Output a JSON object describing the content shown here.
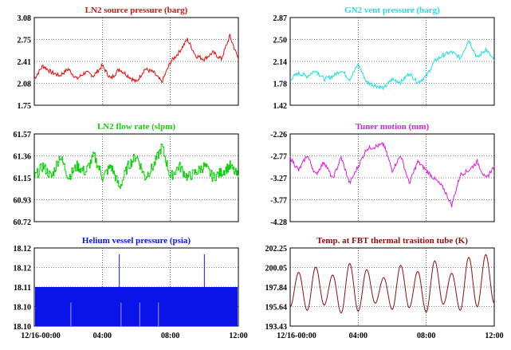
{
  "chart_data": [
    {
      "type": "line",
      "title": "LN2 source pressure (barg)",
      "color": "#e01010",
      "y_ticks": [
        "3.08",
        "2.75",
        "2.41",
        "2.08",
        "1.75"
      ],
      "ylim": [
        1.75,
        3.08
      ],
      "x_ticks": [],
      "x_range_hours": [
        0,
        12
      ],
      "grid": "dotted at ticks",
      "series": [
        {
          "x": [
            0,
            0.5,
            1,
            1.5,
            2,
            2.5,
            3,
            3.5,
            4,
            4.5,
            5,
            5.5,
            6,
            6.5,
            7,
            7.5,
            8,
            8.5,
            9,
            9.5,
            10,
            10.5,
            11,
            11.5,
            12
          ],
          "y": [
            2.15,
            2.35,
            2.25,
            2.2,
            2.3,
            2.15,
            2.25,
            2.2,
            2.35,
            2.15,
            2.3,
            2.2,
            2.1,
            2.3,
            2.25,
            2.1,
            2.4,
            2.55,
            2.75,
            2.5,
            2.45,
            2.55,
            2.45,
            2.8,
            2.45
          ]
        }
      ]
    },
    {
      "type": "line",
      "title": "GN2 vent pressure (barg)",
      "color": "#20e0e0",
      "y_ticks": [
        "2.87",
        "2.50",
        "2.14",
        "1.78",
        "1.42"
      ],
      "ylim": [
        1.42,
        2.87
      ],
      "x_ticks": [],
      "x_range_hours": [
        0,
        12
      ],
      "grid": "dotted at ticks",
      "series": [
        {
          "x": [
            0,
            0.5,
            1,
            1.5,
            2,
            2.5,
            3,
            3.5,
            4,
            4.5,
            5,
            5.5,
            6,
            6.5,
            7,
            7.5,
            8,
            8.5,
            9,
            9.5,
            10,
            10.5,
            11,
            11.5,
            12
          ],
          "y": [
            1.85,
            1.95,
            1.9,
            2.0,
            1.85,
            1.9,
            2.0,
            1.85,
            2.1,
            1.8,
            1.75,
            1.7,
            1.85,
            1.8,
            1.95,
            1.8,
            1.9,
            2.15,
            2.25,
            2.3,
            2.2,
            2.5,
            2.2,
            2.35,
            2.15
          ]
        }
      ]
    },
    {
      "type": "line",
      "title": "LN2 flow rate (slpm)",
      "color": "#10d010",
      "y_ticks": [
        "61.57",
        "61.36",
        "61.15",
        "60.93",
        "60.72"
      ],
      "ylim": [
        60.72,
        61.57
      ],
      "x_ticks": [],
      "x_range_hours": [
        0,
        12
      ],
      "grid": "dotted at ticks",
      "series": [
        {
          "x": [
            0,
            0.5,
            1,
            1.5,
            2,
            2.5,
            3,
            3.5,
            4,
            4.5,
            5,
            5.5,
            6,
            6.5,
            7,
            7.5,
            8,
            8.5,
            9,
            9.5,
            10,
            10.5,
            11,
            11.5,
            12
          ],
          "y": [
            61.15,
            61.26,
            61.15,
            61.36,
            61.15,
            61.26,
            61.2,
            61.36,
            61.15,
            61.26,
            61.05,
            61.26,
            61.36,
            61.15,
            61.26,
            61.45,
            61.15,
            61.26,
            61.15,
            61.2,
            61.26,
            61.15,
            61.2,
            61.26,
            61.15
          ]
        }
      ]
    },
    {
      "type": "line",
      "title": "Tuner motion (mm)",
      "color": "#e020e0",
      "y_ticks": [
        "-2.26",
        "-2.77",
        "-3.27",
        "-3.77",
        "-4.28"
      ],
      "ylim": [
        -4.28,
        -2.26
      ],
      "x_ticks": [],
      "x_range_hours": [
        0,
        12
      ],
      "grid": "dotted at ticks",
      "series": [
        {
          "x": [
            0,
            0.5,
            1,
            1.5,
            2,
            2.5,
            3,
            3.5,
            4,
            4.5,
            5,
            5.5,
            6,
            6.5,
            7,
            7.5,
            8,
            8.5,
            9,
            9.5,
            10,
            10.5,
            11,
            11.5,
            12
          ],
          "y": [
            -2.8,
            -3.1,
            -2.75,
            -3.2,
            -2.9,
            -3.3,
            -2.8,
            -3.4,
            -3.0,
            -2.6,
            -2.55,
            -2.5,
            -3.1,
            -2.75,
            -3.4,
            -2.9,
            -3.1,
            -3.3,
            -3.5,
            -3.9,
            -3.2,
            -3.1,
            -2.9,
            -3.3,
            -3.0
          ]
        }
      ]
    },
    {
      "type": "area",
      "title": "Helium vessel pressure (psia)",
      "color": "#0a14e8",
      "y_ticks": [
        "18.12",
        "18.12",
        "18.11",
        "18.10",
        "18.10"
      ],
      "ylim": [
        18.1,
        18.12
      ],
      "x_ticks": [
        "12/16-00:00",
        "04:00",
        "08:00",
        "12:00"
      ],
      "x_range_hours": [
        0,
        12
      ],
      "grid": "dotted at ticks",
      "fill_band": [
        18.1,
        18.11
      ],
      "spikes": [
        {
          "x": 5.0,
          "y": 18.12
        },
        {
          "x": 10.0,
          "y": 18.12
        }
      ]
    },
    {
      "type": "line",
      "title": "Temp. at FBT thermal trasition tube (K)",
      "color": "#8b1010",
      "y_ticks": [
        "202.25",
        "200.05",
        "197.84",
        "195.64",
        "193.43"
      ],
      "ylim": [
        193.43,
        202.25
      ],
      "x_ticks": [
        "12/16-00:00",
        "04:00",
        "08:00",
        "12:00"
      ],
      "x_range_hours": [
        0,
        12
      ],
      "grid": "dotted at ticks",
      "series": [
        {
          "x": [
            0,
            0.5,
            1,
            1.5,
            2,
            2.5,
            3,
            3.5,
            4,
            4.5,
            5,
            5.5,
            6,
            6.5,
            7,
            7.5,
            8,
            8.5,
            9,
            9.5,
            10,
            10.5,
            11,
            11.5,
            12
          ],
          "y": [
            195.6,
            199.5,
            195.2,
            200.1,
            195.8,
            199.2,
            194.9,
            200.5,
            195.1,
            199.8,
            196.0,
            198.9,
            195.3,
            200.3,
            195.5,
            199.6,
            195.0,
            200.8,
            195.9,
            199.4,
            195.2,
            201.2,
            195.6,
            201.5,
            196.0
          ]
        }
      ]
    }
  ]
}
